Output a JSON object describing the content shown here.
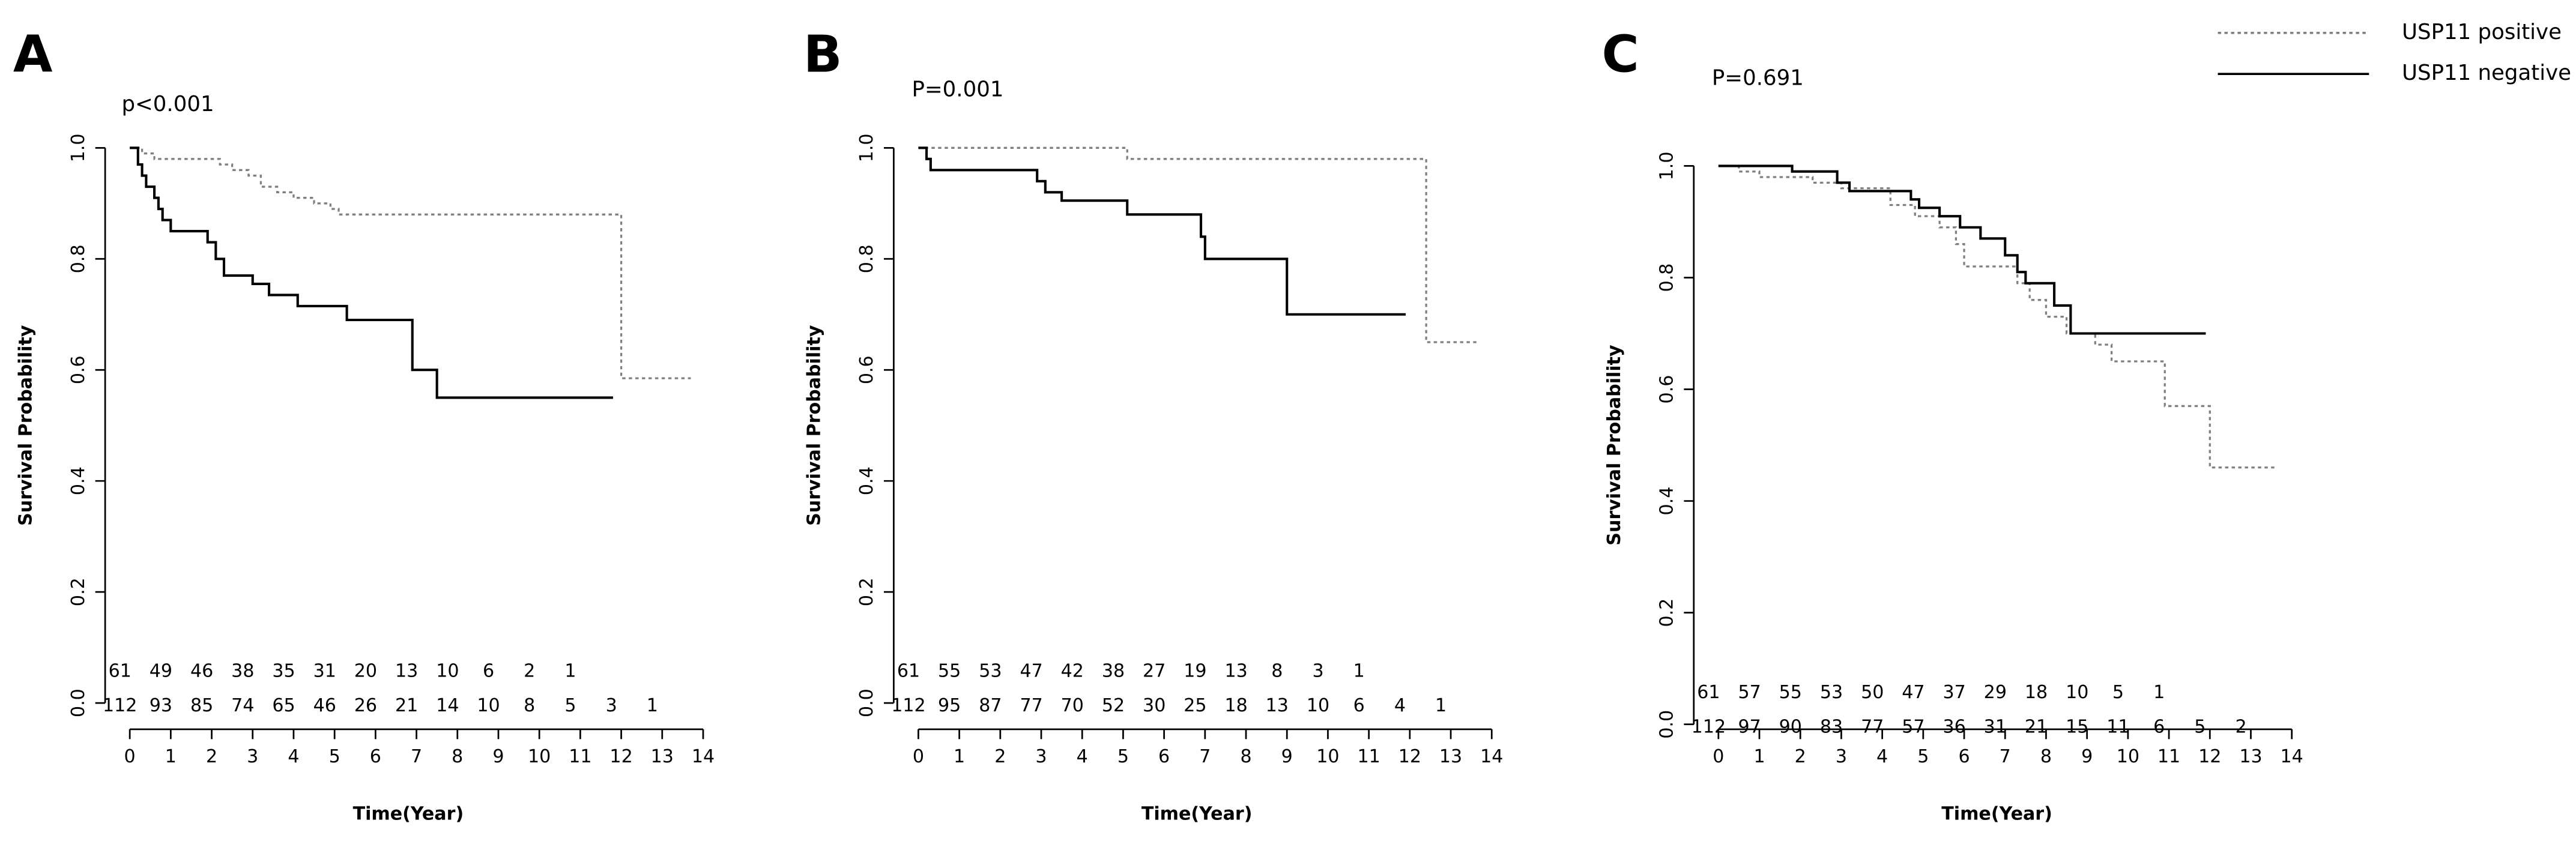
{
  "chart_data": [
    {
      "type": "step",
      "panel": "A",
      "annotation": "p<0.001",
      "xlabel": "Time(Year)",
      "ylabel": "Survival Probability",
      "xlim": [
        0,
        14
      ],
      "xticks": [
        0,
        1,
        2,
        3,
        4,
        5,
        6,
        7,
        8,
        9,
        10,
        11,
        12,
        13,
        14
      ],
      "ylim": [
        0,
        1
      ],
      "yticks": [
        {
          "value": 0,
          "label": "0.0"
        },
        {
          "value": 0.2,
          "label": "0.2"
        },
        {
          "value": 0.4,
          "label": "0.4"
        },
        {
          "value": 0.6,
          "label": "0.6"
        },
        {
          "value": 0.8,
          "label": "0.8"
        },
        {
          "value": 1,
          "label": "1.0"
        }
      ],
      "series": [
        {
          "color": "#808080",
          "dash": "dotted",
          "x": [
            0,
            0.3,
            0.6,
            2.2,
            2.5,
            2.9,
            3.2,
            3.6,
            4.0,
            4.5,
            4.9,
            5.1,
            12.0,
            13.7
          ],
          "values": [
            1.0,
            0.99,
            0.98,
            0.97,
            0.96,
            0.95,
            0.93,
            0.92,
            0.91,
            0.9,
            0.89,
            0.88,
            0.585,
            0.585
          ]
        },
        {
          "color": "#000000",
          "dash": "solid",
          "x": [
            0,
            0.2,
            0.3,
            0.4,
            0.6,
            0.7,
            0.8,
            1.0,
            1.9,
            2.1,
            2.3,
            3.0,
            3.4,
            4.1,
            5.3,
            6.9,
            7.5,
            11.8
          ],
          "values": [
            1.0,
            0.97,
            0.95,
            0.93,
            0.91,
            0.89,
            0.87,
            0.85,
            0.83,
            0.8,
            0.77,
            0.755,
            0.735,
            0.715,
            0.69,
            0.6,
            0.55,
            0.55
          ]
        }
      ],
      "at_risk": [
        {
          "color": "#000000",
          "values": [
            61,
            49,
            46,
            38,
            35,
            31,
            20,
            13,
            10,
            6,
            2,
            1
          ]
        },
        {
          "color": "#000000",
          "values": [
            112,
            93,
            85,
            74,
            65,
            46,
            26,
            21,
            14,
            10,
            8,
            5,
            3,
            1
          ]
        }
      ]
    },
    {
      "type": "step",
      "panel": "B",
      "annotation": "P=0.001",
      "xlabel": "Time(Year)",
      "ylabel": "Survival Probability",
      "xlim": [
        0,
        14
      ],
      "xticks": [
        0,
        1,
        2,
        3,
        4,
        5,
        6,
        7,
        8,
        9,
        10,
        11,
        12,
        13,
        14
      ],
      "ylim": [
        0,
        1
      ],
      "yticks": [
        {
          "value": 0,
          "label": "0.0"
        },
        {
          "value": 0.2,
          "label": "0.2"
        },
        {
          "value": 0.4,
          "label": "0.4"
        },
        {
          "value": 0.6,
          "label": "0.6"
        },
        {
          "value": 0.8,
          "label": "0.8"
        },
        {
          "value": 1,
          "label": "1.0"
        }
      ],
      "series": [
        {
          "color": "#808080",
          "dash": "dotted",
          "x": [
            0,
            5.1,
            12.4,
            13.7
          ],
          "values": [
            1.0,
            0.98,
            0.65,
            0.65
          ]
        },
        {
          "color": "#000000",
          "dash": "solid",
          "x": [
            0,
            0.2,
            0.3,
            2.9,
            3.1,
            3.5,
            5.1,
            6.9,
            7.0,
            9.0,
            11.9
          ],
          "values": [
            1.0,
            0.98,
            0.96,
            0.94,
            0.92,
            0.905,
            0.88,
            0.84,
            0.8,
            0.7,
            0.7
          ]
        }
      ],
      "at_risk": [
        {
          "color": "#000000",
          "values": [
            61,
            55,
            53,
            47,
            42,
            38,
            27,
            19,
            13,
            8,
            3,
            1
          ]
        },
        {
          "color": "#000000",
          "values": [
            112,
            95,
            87,
            77,
            70,
            52,
            30,
            25,
            18,
            13,
            10,
            6,
            4,
            1
          ]
        }
      ]
    },
    {
      "type": "step",
      "panel": "C",
      "annotation": "P=0.691",
      "xlabel": "Time(Year)",
      "ylabel": "Survival Probability",
      "xlim": [
        0,
        14
      ],
      "xticks": [
        0,
        1,
        2,
        3,
        4,
        5,
        6,
        7,
        8,
        9,
        10,
        11,
        12,
        13,
        14
      ],
      "ylim": [
        0,
        1
      ],
      "yticks": [
        {
          "value": 0,
          "label": "0.0"
        },
        {
          "value": 0.2,
          "label": "0.2"
        },
        {
          "value": 0.4,
          "label": "0.4"
        },
        {
          "value": 0.6,
          "label": "0.6"
        },
        {
          "value": 0.8,
          "label": "0.8"
        },
        {
          "value": 1,
          "label": "1.0"
        }
      ],
      "legend": "upper right",
      "series": [
        {
          "name": "USP11 positive",
          "color": "#808080",
          "dash": "dotted",
          "x": [
            0,
            0.5,
            1.0,
            2.3,
            3.0,
            4.2,
            4.8,
            5.4,
            5.8,
            6.0,
            7.3,
            7.6,
            8.0,
            8.5,
            9.2,
            9.6,
            10.9,
            12.0,
            13.6
          ],
          "values": [
            1.0,
            0.99,
            0.98,
            0.97,
            0.96,
            0.93,
            0.91,
            0.89,
            0.86,
            0.82,
            0.79,
            0.76,
            0.73,
            0.7,
            0.68,
            0.65,
            0.57,
            0.46,
            0.46
          ]
        },
        {
          "name": "USP11 negative",
          "color": "#000000",
          "dash": "solid",
          "x": [
            0,
            1.8,
            2.9,
            3.2,
            4.7,
            4.9,
            5.4,
            5.9,
            6.4,
            7.0,
            7.3,
            7.5,
            8.2,
            8.6,
            11.9
          ],
          "values": [
            1.0,
            0.99,
            0.97,
            0.955,
            0.94,
            0.925,
            0.91,
            0.89,
            0.87,
            0.84,
            0.81,
            0.79,
            0.75,
            0.7,
            0.7
          ]
        }
      ],
      "at_risk": [
        {
          "color": "#000000",
          "values": [
            61,
            57,
            55,
            53,
            50,
            47,
            37,
            29,
            18,
            10,
            5,
            1
          ]
        },
        {
          "color": "#000000",
          "values": [
            112,
            97,
            90,
            83,
            77,
            57,
            36,
            31,
            21,
            15,
            11,
            6,
            5,
            2
          ]
        }
      ]
    }
  ]
}
